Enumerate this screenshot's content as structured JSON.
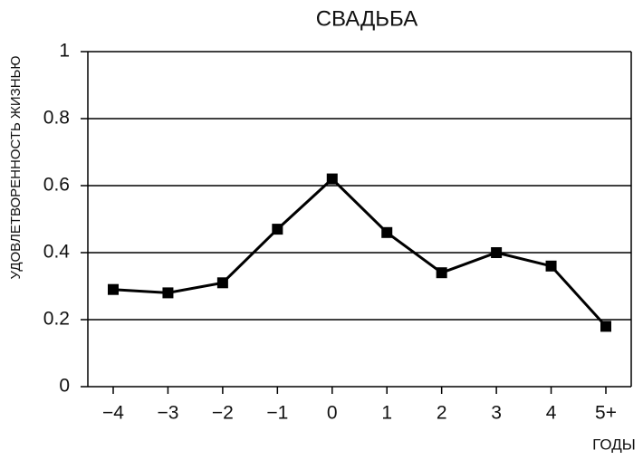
{
  "chart_data": {
    "type": "line",
    "title": "СВАДЬБА",
    "x_label": "ГОДЫ",
    "y_label": "УДОВЛЕТВОРЕННОСТЬ ЖИЗНЬЮ",
    "categories": [
      "−4",
      "−3",
      "−2",
      "−1",
      "0",
      "1",
      "2",
      "3",
      "4",
      "5+"
    ],
    "values": [
      0.29,
      0.28,
      0.31,
      0.47,
      0.62,
      0.46,
      0.34,
      0.4,
      0.36,
      0.18
    ],
    "color": "#000000",
    "marker": "square",
    "ylim": [
      0,
      1
    ],
    "yticks": [
      0,
      0.2,
      0.4,
      0.6,
      0.8,
      1
    ],
    "grid": true
  }
}
